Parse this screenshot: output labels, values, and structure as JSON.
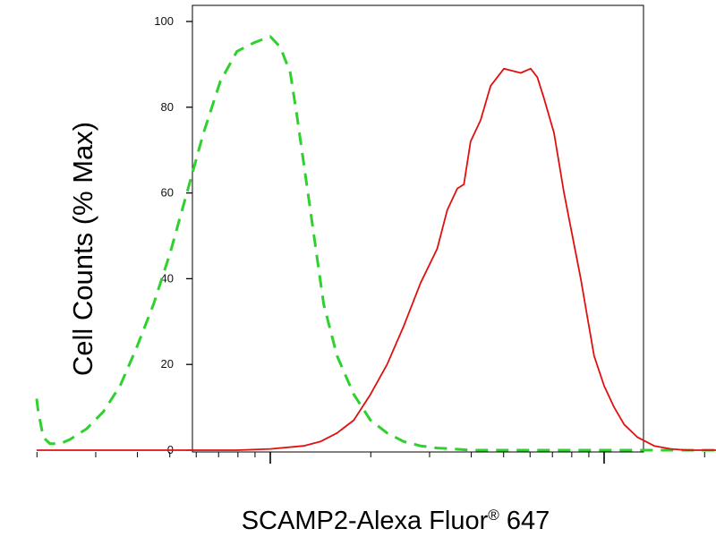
{
  "chart_data": {
    "type": "line",
    "title": "",
    "xlabel": "SCAMP2-Alexa Fluor",
    "xlabel_reg": "®",
    "xlabel_tail": " 647",
    "ylabel": "Cell Counts (% Max)",
    "xscale": "log",
    "xlim": [
      -0.7,
      1.65
    ],
    "ylim": [
      0,
      100
    ],
    "yticks": [
      "0",
      "20",
      "40",
      "60",
      "80",
      "100"
    ],
    "ytick_values": [
      0,
      20,
      40,
      60,
      80,
      100
    ],
    "x_major_ticks": [
      0,
      1
    ],
    "grid": false,
    "legend": "none",
    "series": [
      {
        "style": "dashed",
        "color": "#2ed12e",
        "x": [
          -0.7,
          -0.695,
          -0.68,
          -0.66,
          -0.63,
          -0.6,
          -0.55,
          -0.5,
          -0.45,
          -0.4,
          -0.35,
          -0.3,
          -0.25,
          -0.2,
          -0.15,
          -0.1,
          -0.05,
          0.0,
          0.03,
          0.06,
          0.08,
          0.1,
          0.12,
          0.14,
          0.16,
          0.2,
          0.25,
          0.3,
          0.35,
          0.4,
          0.45,
          0.5,
          0.55,
          0.6,
          0.7,
          0.8,
          0.9,
          1.0,
          1.2,
          1.4,
          1.65
        ],
        "y": [
          12,
          9,
          3,
          1.5,
          1.5,
          2.5,
          5,
          9,
          15,
          24,
          34,
          46,
          60,
          74,
          86,
          93,
          95,
          96.5,
          94,
          88,
          78,
          67,
          56,
          45,
          34,
          22,
          13,
          7,
          4,
          2,
          1,
          0.5,
          0.3,
          0,
          0,
          0,
          0,
          0,
          0,
          0,
          0
        ]
      },
      {
        "style": "solid",
        "color": "#e01010",
        "x": [
          -0.7,
          -0.3,
          -0.2,
          -0.1,
          0.0,
          0.1,
          0.15,
          0.2,
          0.25,
          0.3,
          0.35,
          0.4,
          0.45,
          0.5,
          0.53,
          0.56,
          0.58,
          0.6,
          0.63,
          0.66,
          0.7,
          0.75,
          0.78,
          0.8,
          0.82,
          0.85,
          0.88,
          0.91,
          0.93,
          0.95,
          0.97,
          1.0,
          1.03,
          1.06,
          1.1,
          1.15,
          1.2,
          1.25,
          1.3,
          1.4,
          1.5,
          1.65
        ],
        "y": [
          0,
          0,
          0,
          0,
          0.3,
          1,
          2,
          4,
          7,
          13,
          20,
          29,
          39,
          47,
          56,
          61,
          62,
          72,
          77,
          85,
          89,
          88,
          89,
          87,
          82,
          74,
          60,
          48,
          40,
          31,
          22,
          15,
          10,
          6,
          3,
          1,
          0.3,
          0,
          0,
          0,
          0,
          0
        ]
      }
    ]
  }
}
